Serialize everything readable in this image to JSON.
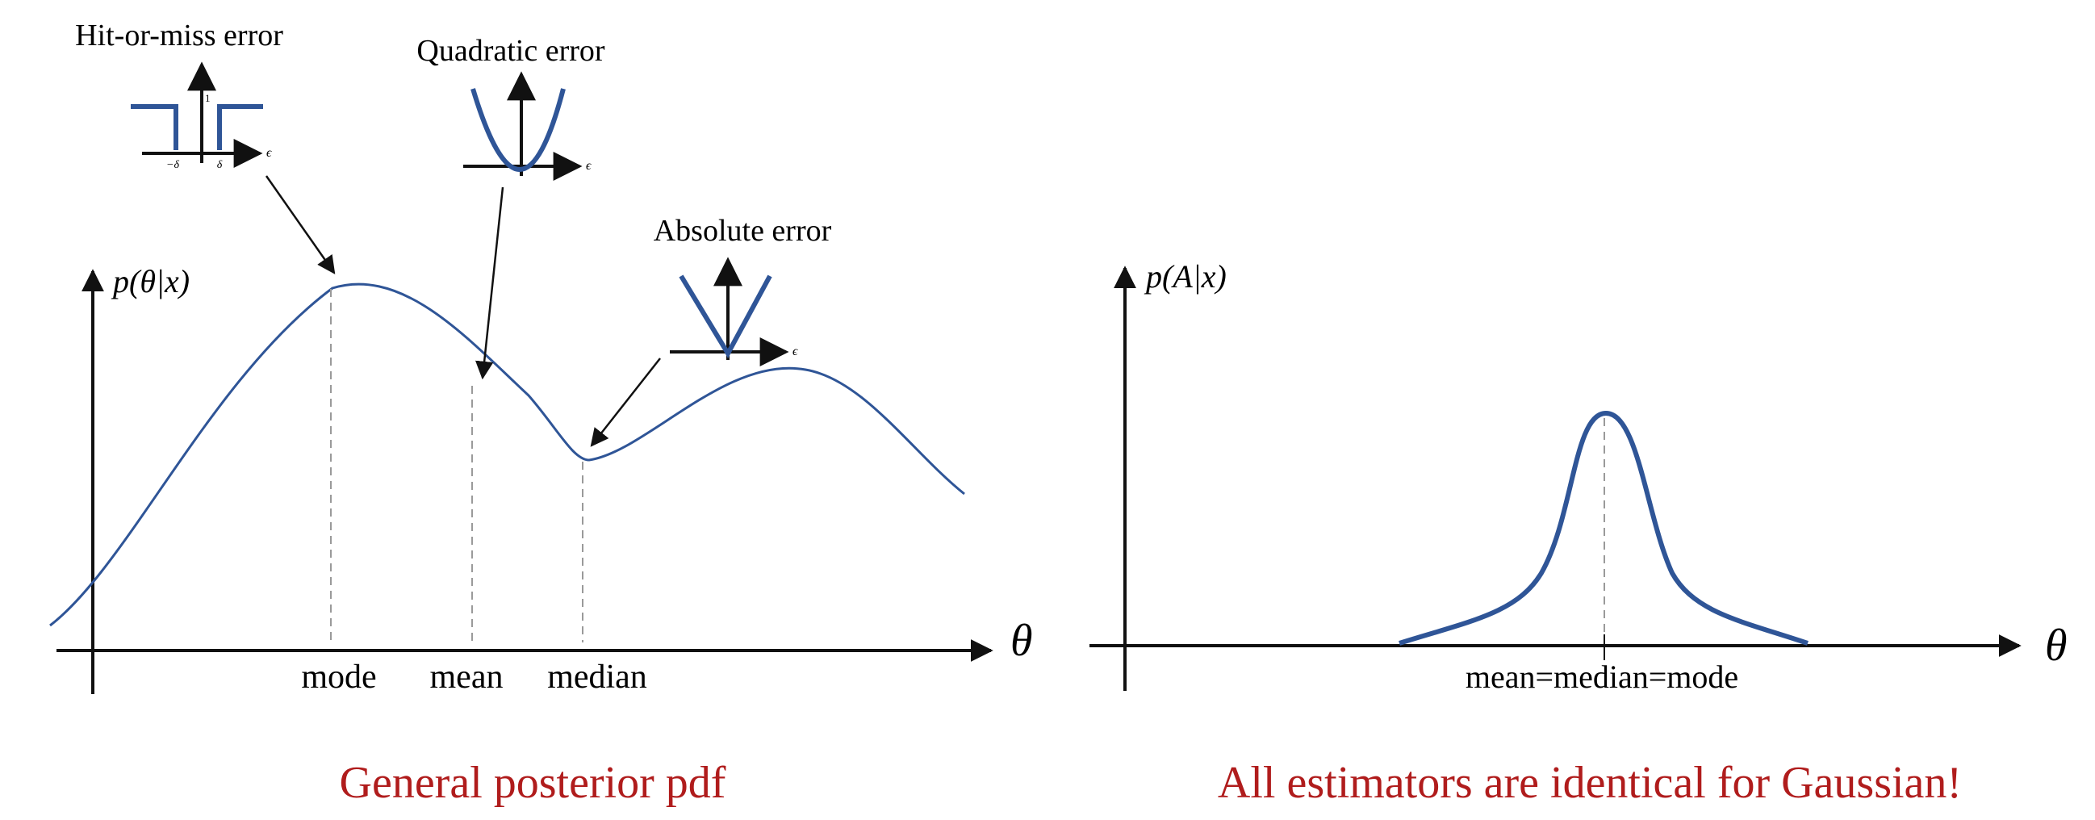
{
  "left_panel": {
    "ylabel": "p(θ|x)",
    "xlabel": "θ",
    "tick_labels": [
      "mode",
      "mean",
      "median"
    ],
    "caption": "General posterior pdf",
    "insets": {
      "hit_or_miss": {
        "title": "Hit-or-miss error",
        "axis_label": "ϵ",
        "neg_delta": "−δ",
        "pos_delta": "δ",
        "one": "1"
      },
      "quadratic": {
        "title": "Quadratic error",
        "axis_label": "ϵ"
      },
      "absolute": {
        "title": "Absolute error",
        "axis_label": "ϵ"
      }
    }
  },
  "right_panel": {
    "ylabel": "p(A|x)",
    "xlabel": "θ",
    "tick_label": "mean=median=mode",
    "caption": "All estimators are identical for Gaussian!"
  },
  "colors": {
    "curve": "#2f5597",
    "axis": "#111111",
    "guide": "#9a9a9a",
    "caption": "#b01c1c"
  }
}
